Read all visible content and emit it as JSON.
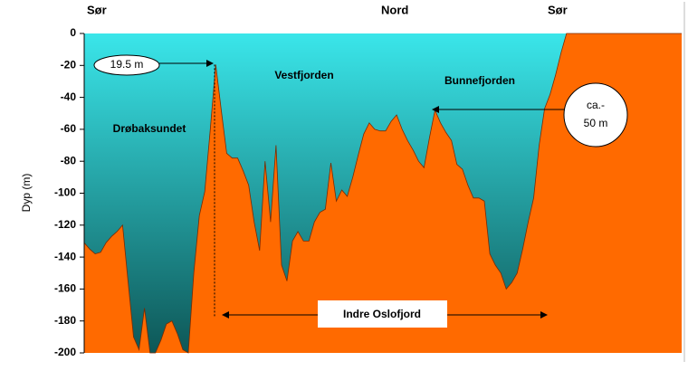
{
  "chart_data": {
    "type": "area",
    "ylabel": "Dyp (m)",
    "top_labels": [
      "Sør",
      "Nord",
      "Sør"
    ],
    "ylim": [
      -200,
      0
    ],
    "yticks": [
      0,
      -20,
      -40,
      -60,
      -80,
      -100,
      -120,
      -140,
      -160,
      -180,
      -200
    ],
    "water_colors": [
      "#3ae6ea",
      "#0e5757"
    ],
    "color": "#ff6a00",
    "values": [
      -131,
      -135,
      -138,
      -137,
      -131,
      -127,
      -124,
      -120,
      -155,
      -190,
      -198,
      -172,
      -200,
      -200,
      -192,
      -182,
      -180,
      -188,
      -198,
      -200,
      -150,
      -114,
      -99,
      -60,
      -19.5,
      -48,
      -75,
      -78,
      -78,
      -86,
      -95,
      -118,
      -136,
      -80,
      -118,
      -70,
      -145,
      -155,
      -130,
      -124,
      -130,
      -130,
      -118,
      -112,
      -110,
      -81,
      -105,
      -98,
      -102,
      -90,
      -76,
      -63,
      -56,
      -60,
      -61,
      -61,
      -55,
      -51,
      -60,
      -67,
      -73,
      -80,
      -84,
      -65,
      -48,
      -56,
      -62,
      -67,
      -82,
      -85,
      -95,
      -103,
      -103,
      -105,
      -138,
      -145,
      -150,
      -160,
      -156,
      -150,
      -135,
      -118,
      -103,
      -70,
      -47,
      -38,
      -26,
      -12,
      0,
      0,
      0,
      0,
      0,
      0,
      0,
      0,
      0,
      0,
      0,
      0,
      0,
      0,
      0,
      0,
      0,
      0,
      0,
      0,
      0,
      0
    ],
    "annotations": [
      {
        "lines": [
          "19.5 m"
        ]
      },
      {
        "lines": [
          "Vestfjorden"
        ]
      },
      {
        "lines": [
          "Bunnefjorden"
        ]
      },
      {
        "lines": [
          "Drøbaksundet"
        ]
      },
      {
        "lines": [
          "ca.-",
          "50 m"
        ]
      },
      {
        "lines": [
          "Indre Oslofjord"
        ]
      }
    ]
  }
}
